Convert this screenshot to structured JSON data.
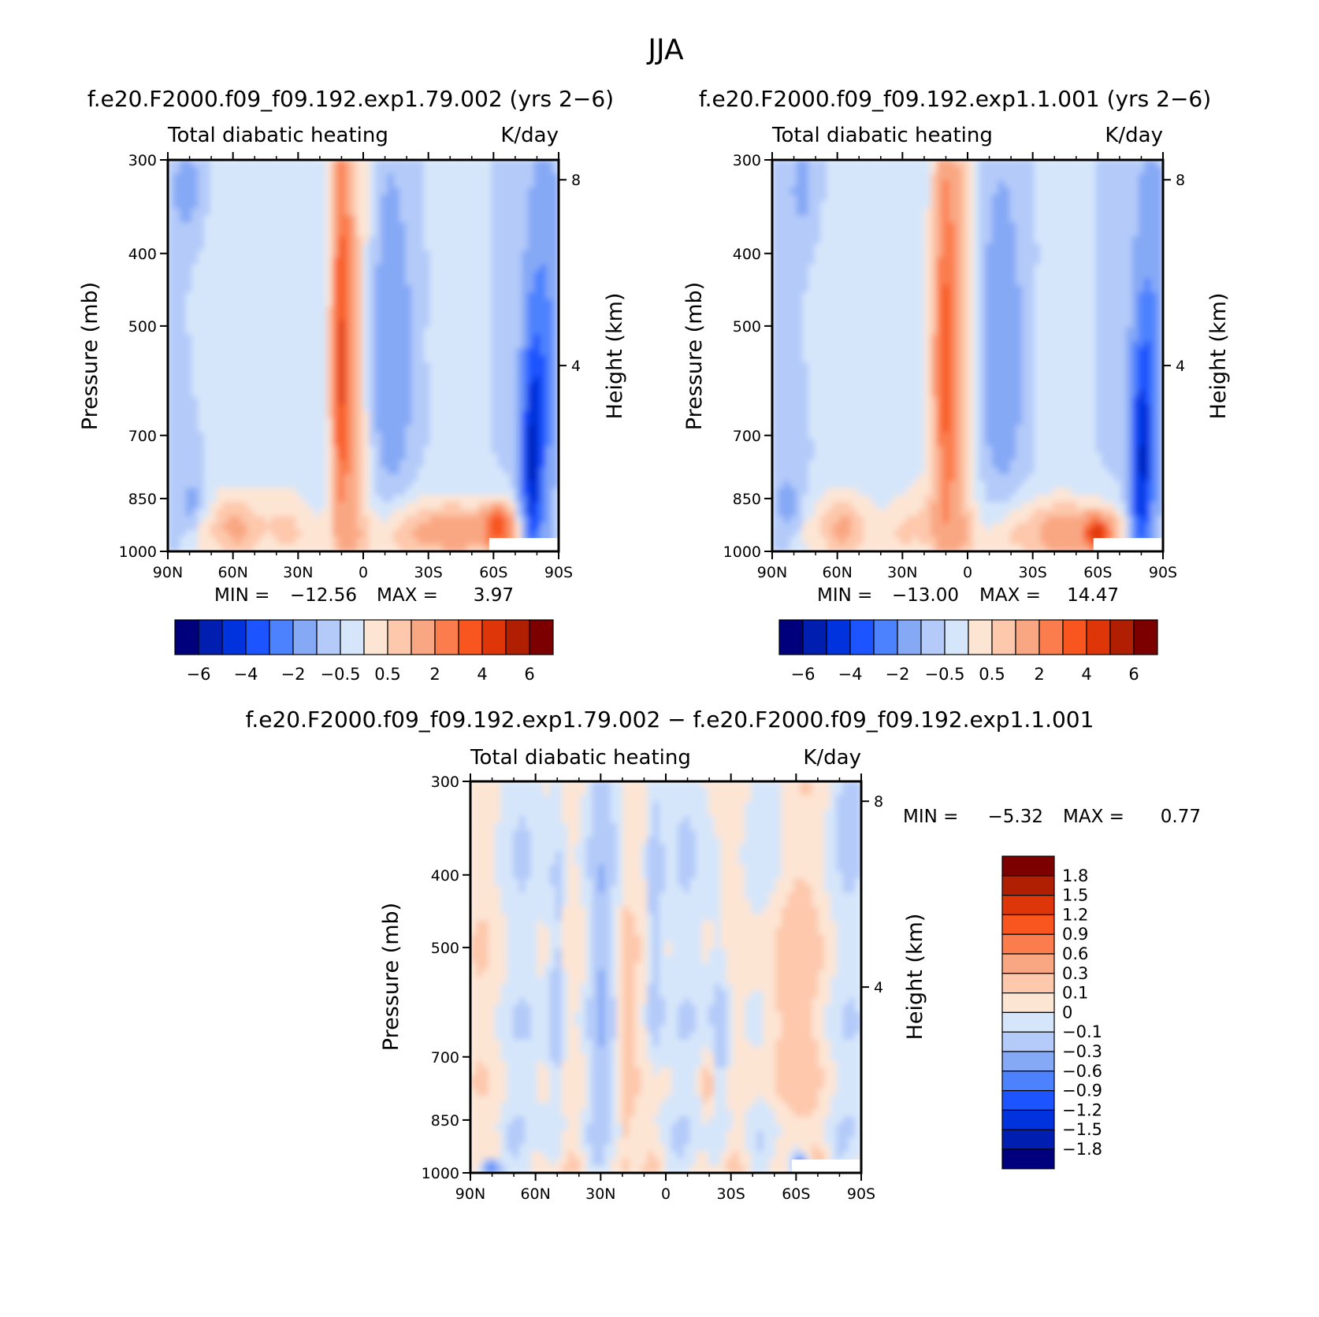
{
  "chart_data": {
    "type": "heatmap",
    "title": "JJA",
    "colors": {
      "neg6": "#00007d",
      "neg5": "#001fb0",
      "neg4": "#0033dd",
      "neg3": "#1c55ff",
      "neg2": "#4d82ff",
      "neg1": "#86a9f6",
      "neg05": "#b4cbf9",
      "neg0": "#d6e6fa",
      "pos0": "#fde5d4",
      "pos05": "#fdc8ac",
      "pos1": "#f9a783",
      "pos2": "#fb7d4e",
      "pos3": "#f8551f",
      "pos4": "#de3608",
      "pos5": "#b11f02",
      "pos6": "#7d0000",
      "missing": "#ffffff"
    },
    "panels": [
      {
        "id": "case",
        "subtitle": "f.e20.F2000.f09_f09.192.exp1.79.002 (yrs 2−6)",
        "left_label": "Total diabatic heating",
        "right_label": "K/day",
        "xlabel": "",
        "ylabel": "Pressure (mb)",
        "y2label": "Height (km)",
        "x_ticks": [
          "90N",
          "60N",
          "30N",
          "0",
          "30S",
          "60S",
          "90S"
        ],
        "y_ticks": [
          "300",
          "400",
          "500",
          "700",
          "850",
          "1000"
        ],
        "y2_ticks": [
          "8",
          "4"
        ],
        "xlim": [
          90,
          -90
        ],
        "ylim": [
          1000,
          300
        ],
        "min_label": "MIN =",
        "min_value": "−12.56",
        "max_label": "MAX =",
        "max_value": "3.97",
        "cb_labels": [
          "−6",
          "−4",
          "−2",
          "−0.5",
          "0.5",
          "2",
          "4",
          "6"
        ],
        "features": [
          {
            "lat": 68,
            "p": 430,
            "dlat": 14,
            "dp": 260,
            "v": 0.3
          },
          {
            "lat": 5,
            "p": 590,
            "dlat": 9,
            "dp": 520,
            "v": 1.5
          },
          {
            "lat": 10,
            "p": 560,
            "dlat": 4,
            "dp": 300,
            "v": 3.5
          },
          {
            "lat": -12,
            "p": 560,
            "dlat": 12,
            "dp": 300,
            "v": -1.3
          },
          {
            "lat": -40,
            "p": 540,
            "dlat": 8,
            "dp": 80,
            "v": 0.25
          },
          {
            "lat": -38,
            "p": 940,
            "dlat": 24,
            "dp": 90,
            "v": 1.4
          },
          {
            "lat": -62,
            "p": 930,
            "dlat": 7,
            "dp": 60,
            "v": 3.5
          },
          {
            "lat": 62,
            "p": 920,
            "dlat": 12,
            "dp": 100,
            "v": 1.1
          },
          {
            "lat": 40,
            "p": 900,
            "dlat": 14,
            "dp": 120,
            "v": 0.6
          },
          {
            "lat": -78,
            "p": 760,
            "dlat": 5,
            "dp": 250,
            "v": -4.5
          },
          {
            "lat": -84,
            "p": 560,
            "dlat": 6,
            "dp": 240,
            "v": -1.6
          },
          {
            "lat": 78,
            "p": 860,
            "dlat": 6,
            "dp": 60,
            "v": -0.8
          },
          {
            "lat": 80,
            "p": 330,
            "dlat": 8,
            "dp": 60,
            "v": -0.7
          }
        ]
      },
      {
        "id": "control",
        "subtitle": "f.e20.F2000.f09_f09.192.exp1.1.001 (yrs 2−6)",
        "left_label": "Total diabatic heating",
        "right_label": "K/day",
        "xlabel": "",
        "ylabel": "Pressure (mb)",
        "y2label": "Height (km)",
        "x_ticks": [
          "90N",
          "60N",
          "30N",
          "0",
          "30S",
          "60S",
          "90S"
        ],
        "y_ticks": [
          "300",
          "400",
          "500",
          "700",
          "850",
          "1000"
        ],
        "y2_ticks": [
          "8",
          "4"
        ],
        "xlim": [
          90,
          -90
        ],
        "ylim": [
          1000,
          300
        ],
        "min_label": "MIN =",
        "min_value": "−13.00",
        "max_label": "MAX =",
        "max_value": "14.47",
        "cb_labels": [
          "−6",
          "−4",
          "−2",
          "−0.5",
          "0.5",
          "2",
          "4",
          "6"
        ],
        "features": [
          {
            "lat": 62,
            "p": 470,
            "dlat": 12,
            "dp": 260,
            "v": 0.3
          },
          {
            "lat": 6,
            "p": 600,
            "dlat": 10,
            "dp": 520,
            "v": 1.5
          },
          {
            "lat": 10,
            "p": 560,
            "dlat": 5,
            "dp": 300,
            "v": 2.6
          },
          {
            "lat": -15,
            "p": 560,
            "dlat": 12,
            "dp": 290,
            "v": -1.3
          },
          {
            "lat": -38,
            "p": 560,
            "dlat": 9,
            "dp": 100,
            "v": 0.25
          },
          {
            "lat": -45,
            "p": 940,
            "dlat": 22,
            "dp": 90,
            "v": 1.5
          },
          {
            "lat": -60,
            "p": 950,
            "dlat": 6,
            "dp": 50,
            "v": 4.0
          },
          {
            "lat": 58,
            "p": 920,
            "dlat": 14,
            "dp": 100,
            "v": 1.1
          },
          {
            "lat": 20,
            "p": 900,
            "dlat": 14,
            "dp": 110,
            "v": 0.6
          },
          {
            "lat": -80,
            "p": 780,
            "dlat": 5,
            "dp": 250,
            "v": -4.0
          },
          {
            "lat": -85,
            "p": 580,
            "dlat": 6,
            "dp": 240,
            "v": -1.6
          },
          {
            "lat": 82,
            "p": 870,
            "dlat": 6,
            "dp": 60,
            "v": -0.9
          },
          {
            "lat": 75,
            "p": 330,
            "dlat": 8,
            "dp": 60,
            "v": -0.6
          }
        ]
      },
      {
        "id": "diff",
        "subtitle": "f.e20.F2000.f09_f09.192.exp1.79.002 − f.e20.F2000.f09_f09.192.exp1.1.001",
        "left_label": "Total diabatic heating",
        "right_label": "K/day",
        "xlabel": "",
        "ylabel": "Pressure (mb)",
        "y2label": "Height (km)",
        "x_ticks": [
          "90N",
          "60N",
          "30N",
          "0",
          "30S",
          "60S",
          "90S"
        ],
        "y_ticks": [
          "300",
          "400",
          "500",
          "700",
          "850",
          "1000"
        ],
        "y2_ticks": [
          "8",
          "4"
        ],
        "xlim": [
          90,
          -90
        ],
        "ylim": [
          1000,
          300
        ],
        "min_label": "MIN =",
        "min_value": "−5.32",
        "max_label": "MAX =",
        "max_value": "0.77",
        "cb_labels": [
          "1.8",
          "1.5",
          "1.2",
          "0.9",
          "0.6",
          "0.3",
          "0.1",
          "0",
          "−0.1",
          "−0.3",
          "−0.6",
          "−0.9",
          "−1.2",
          "−1.5",
          "−1.8"
        ],
        "features": [
          {
            "lat": 50,
            "p": 600,
            "dlat": 4,
            "dp": 300,
            "v": -0.25
          },
          {
            "lat": 30,
            "p": 550,
            "dlat": 4,
            "dp": 300,
            "v": -0.25
          },
          {
            "lat": 18,
            "p": 700,
            "dlat": 3,
            "dp": 250,
            "v": 0.25
          },
          {
            "lat": 5,
            "p": 500,
            "dlat": 4,
            "dp": 250,
            "v": -0.25
          },
          {
            "lat": -25,
            "p": 680,
            "dlat": 5,
            "dp": 220,
            "v": -0.25
          },
          {
            "lat": -55,
            "p": 620,
            "dlat": 12,
            "dp": 250,
            "v": 0.2
          },
          {
            "lat": -20,
            "p": 760,
            "dlat": 3,
            "dp": 100,
            "v": 0.2
          },
          {
            "lat": 80,
            "p": 990,
            "dlat": 4,
            "dp": 25,
            "v": -1.0
          },
          {
            "lat": -62,
            "p": 980,
            "dlat": 3,
            "dp": 30,
            "v": -1.2
          },
          {
            "lat": -85,
            "p": 330,
            "dlat": 4,
            "dp": 50,
            "v": -0.2
          }
        ]
      }
    ]
  }
}
